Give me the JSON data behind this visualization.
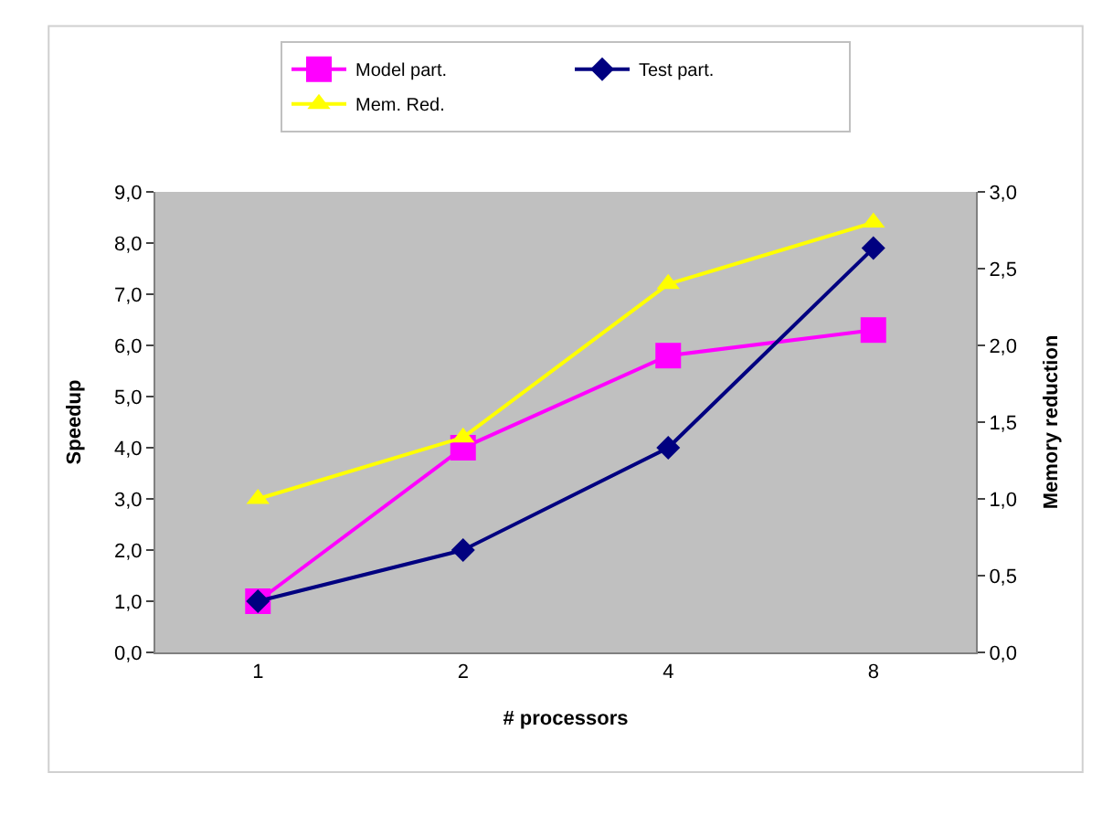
{
  "chart_data": {
    "type": "line",
    "xlabel": "# processors",
    "ylabel": "Speedup",
    "y2label": "Memory reduction",
    "categories": [
      "1",
      "2",
      "4",
      "8"
    ],
    "series": [
      {
        "name": "Model part.",
        "color": "#ff00ff",
        "marker": "square",
        "values": [
          1.0,
          4.0,
          5.8,
          6.3
        ]
      },
      {
        "name": "Test part.",
        "color": "#000080",
        "marker": "diamond",
        "values": [
          1.0,
          2.0,
          4.0,
          7.9
        ]
      },
      {
        "name": "Mem. Red.",
        "color": "#ffff00",
        "marker": "triangle",
        "axis": "y2",
        "values": [
          1.0,
          1.4,
          2.4,
          2.8
        ]
      }
    ],
    "ylim": [
      0,
      9
    ],
    "yticks": [
      {
        "value": 0,
        "label": "0,0"
      },
      {
        "value": 1,
        "label": "1,0"
      },
      {
        "value": 2,
        "label": "2,0"
      },
      {
        "value": 3,
        "label": "3,0"
      },
      {
        "value": 4,
        "label": "4,0"
      },
      {
        "value": 5,
        "label": "5,0"
      },
      {
        "value": 6,
        "label": "6,0"
      },
      {
        "value": 7,
        "label": "7,0"
      },
      {
        "value": 8,
        "label": "8,0"
      },
      {
        "value": 9,
        "label": "9,0"
      }
    ],
    "y2lim": [
      0,
      3
    ],
    "y2ticks": [
      {
        "value": 0,
        "label": "0,0"
      },
      {
        "value": 0.5,
        "label": "0,5"
      },
      {
        "value": 1,
        "label": "1,0"
      },
      {
        "value": 1.5,
        "label": "1,5"
      },
      {
        "value": 2,
        "label": "2,0"
      },
      {
        "value": 2.5,
        "label": "2,5"
      },
      {
        "value": 3,
        "label": "3,0"
      }
    ],
    "grid": false,
    "legend": "top",
    "line_style": "solid"
  }
}
